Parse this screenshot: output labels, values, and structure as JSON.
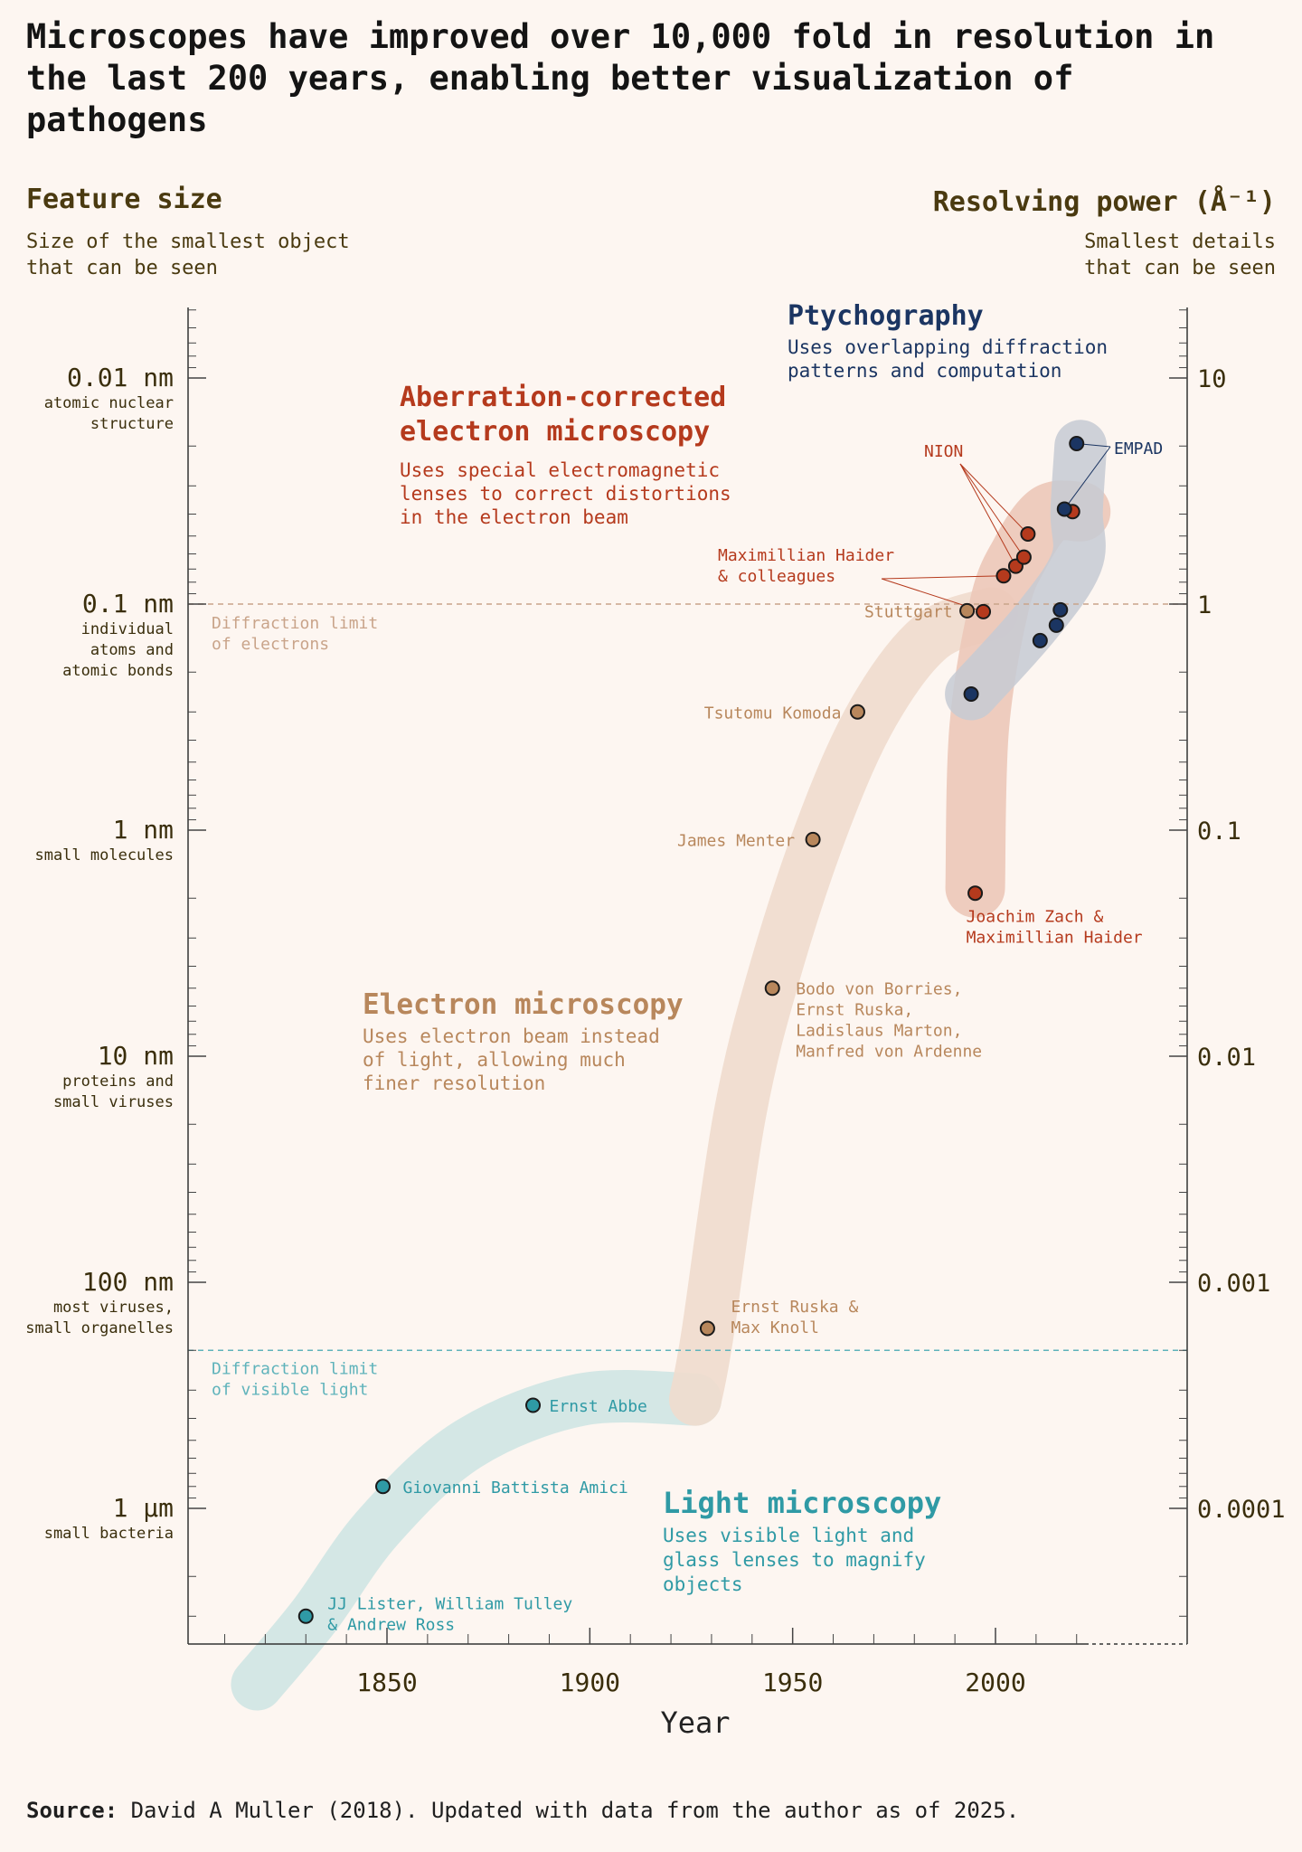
{
  "title": "Microscopes have improved over 10,000 fold in resolution in the last 200 years, enabling better visualization of pathogens",
  "left_axis": {
    "heading": "Feature size",
    "subtitle_lines": [
      "Size of the smallest object",
      "that can be seen"
    ],
    "ticks": [
      {
        "label": "0.01 nm",
        "desc": [
          "atomic nuclear",
          "structure"
        ],
        "feature_nm": 0.01
      },
      {
        "label": "0.1 nm",
        "desc": [
          "individual",
          "atoms and",
          "atomic bonds"
        ],
        "feature_nm": 0.1
      },
      {
        "label": "1 nm",
        "desc": [
          "small molecules"
        ],
        "feature_nm": 1
      },
      {
        "label": "10 nm",
        "desc": [
          "proteins and",
          "small viruses"
        ],
        "feature_nm": 10
      },
      {
        "label": "100 nm",
        "desc": [
          "most viruses,",
          "small organelles"
        ],
        "feature_nm": 100
      },
      {
        "label": "1 µm",
        "desc": [
          "small bacteria"
        ],
        "feature_nm": 1000
      }
    ]
  },
  "right_axis": {
    "heading": "Resolving power (Å⁻¹)",
    "subtitle_lines": [
      "Smallest details",
      "that can be seen"
    ],
    "ticks": [
      {
        "label": "10",
        "value": 10
      },
      {
        "label": "1",
        "value": 1
      },
      {
        "label": "0.1",
        "value": 0.1
      },
      {
        "label": "0.01",
        "value": 0.01
      },
      {
        "label": "0.001",
        "value": 0.001
      },
      {
        "label": "0.0001",
        "value": 0.0001
      }
    ]
  },
  "chart_data": {
    "type": "scatter",
    "xlabel": "Year",
    "x_ticks": [
      1850,
      1900,
      1950,
      2000
    ],
    "xlim": [
      1800,
      2050
    ],
    "y_scale": "log",
    "ylabel": "Feature size",
    "ylim_nm": [
      0.005,
      3000
    ],
    "reference_lines": [
      {
        "label_lines": [
          "Diffraction limit",
          "of electrons"
        ],
        "feature_nm": 0.1,
        "color": "#c9a48a"
      },
      {
        "label_lines": [
          "Diffraction limit",
          "of visible light"
        ],
        "feature_nm": 200,
        "color": "#5fb3bb"
      }
    ],
    "series": [
      {
        "name": "Light microscopy",
        "description_lines": [
          "Uses visible light and",
          "glass lenses to magnify",
          "objects"
        ],
        "color": "#2f9aa5",
        "band_color": "#cfe6e3",
        "band": [
          [
            1818,
            6000
          ],
          [
            1832,
            3000
          ],
          [
            1848,
            1200
          ],
          [
            1870,
            520
          ],
          [
            1898,
            330
          ],
          [
            1926,
            330
          ]
        ],
        "points": [
          {
            "year": 1830,
            "feature_nm": 3000,
            "label_lines": [
              "JJ Lister, William Tulley",
              "& Andrew Ross"
            ]
          },
          {
            "year": 1849,
            "feature_nm": 800,
            "label_lines": [
              "Giovanni Battista Amici"
            ]
          },
          {
            "year": 1886,
            "feature_nm": 350,
            "label_lines": [
              "Ernst Abbe"
            ]
          }
        ]
      },
      {
        "name": "Electron microscopy",
        "description_lines": [
          "Uses electron beam instead",
          "of light, allowing much",
          "finer resolution"
        ],
        "color": "#b8875c",
        "band_color": "#f0dccd",
        "band": [
          [
            1926,
            330
          ],
          [
            1929,
            170
          ],
          [
            1937,
            18
          ],
          [
            1946,
            4
          ],
          [
            1958,
            0.9
          ],
          [
            1970,
            0.3
          ],
          [
            1984,
            0.14
          ],
          [
            1999,
            0.11
          ]
        ],
        "points": [
          {
            "year": 1929,
            "feature_nm": 160,
            "label_lines": [
              "Ernst Ruska &",
              "Max Knoll"
            ]
          },
          {
            "year": 1945,
            "feature_nm": 5,
            "label_lines": [
              "Bodo von Borries,",
              "Ernst Ruska,",
              "Ladislaus Marton,",
              "Manfred von Ardenne"
            ]
          },
          {
            "year": 1955,
            "feature_nm": 1.1,
            "label_lines": [
              "James Menter"
            ]
          },
          {
            "year": 1966,
            "feature_nm": 0.3,
            "label_lines": [
              "Tsutomu Komoda"
            ]
          },
          {
            "year": 1993,
            "feature_nm": 0.107,
            "label_lines": [
              "Stuttgart"
            ]
          }
        ]
      },
      {
        "name": "Aberration-corrected electron microscopy",
        "description_lines": [
          "Uses special electromagnetic",
          "lenses to correct distortions",
          "in the electron beam"
        ],
        "color": "#b53a1d",
        "band_color": "#ecc8b8",
        "band": [
          [
            1995,
            1.8
          ],
          [
            1996,
            0.35
          ],
          [
            2001,
            0.1
          ],
          [
            2006,
            0.06
          ],
          [
            2013,
            0.04
          ],
          [
            2021,
            0.039
          ]
        ],
        "points": [
          {
            "year": 1995,
            "feature_nm": 1.9,
            "label_lines": [
              "Joachim Zach &",
              "Maximillian Haider"
            ]
          },
          {
            "year": 1997,
            "feature_nm": 0.108
          },
          {
            "year": 2002,
            "feature_nm": 0.075
          },
          {
            "year": 2005,
            "feature_nm": 0.068
          },
          {
            "year": 2007,
            "feature_nm": 0.062
          },
          {
            "year": 2008,
            "feature_nm": 0.049
          },
          {
            "year": 2019,
            "feature_nm": 0.039
          }
        ],
        "callouts": [
          {
            "label_lines": [
              "Maximillian Haider",
              "& colleagues"
            ],
            "target_indices": [
              1,
              2
            ]
          },
          {
            "label_lines": [
              "NION"
            ],
            "target_indices": [
              3,
              4,
              5
            ]
          }
        ]
      },
      {
        "name": "Ptychography",
        "description_lines": [
          "Uses overlapping diffraction",
          "patterns and computation"
        ],
        "color": "#1b3562",
        "band_color": "#c6cad3",
        "band": [
          [
            1994,
            0.25
          ],
          [
            2010,
            0.12
          ],
          [
            2020,
            0.065
          ],
          [
            2020,
            0.039
          ],
          [
            2021,
            0.02
          ]
        ],
        "points": [
          {
            "year": 1994,
            "feature_nm": 0.25
          },
          {
            "year": 2011,
            "feature_nm": 0.145
          },
          {
            "year": 2015,
            "feature_nm": 0.124
          },
          {
            "year": 2016,
            "feature_nm": 0.106
          },
          {
            "year": 2017,
            "feature_nm": 0.038
          },
          {
            "year": 2020,
            "feature_nm": 0.0195
          }
        ],
        "callouts": [
          {
            "label_lines": [
              "EMPAD"
            ],
            "target_indices": [
              4,
              5
            ]
          }
        ]
      }
    ]
  },
  "source": {
    "prefix": "Source:",
    "text": "David A Muller (2018). Updated with data from the author as of 2025."
  }
}
